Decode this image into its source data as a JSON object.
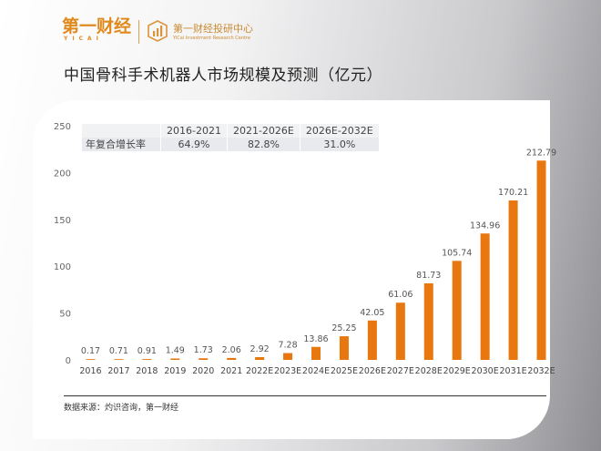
{
  "header": {
    "logo_text": "第一财经",
    "logo_sub": "YICAI",
    "center_name": "第一财经投研中心",
    "center_name_en": "YiCai Investment Research Centre"
  },
  "chart_data": {
    "type": "bar",
    "title": "中国骨科手术机器人市场规模及预测（亿元）",
    "categories": [
      "2016",
      "2017",
      "2018",
      "2019",
      "2020",
      "2021",
      "2022E",
      "2023E",
      "2024E",
      "2025E",
      "2026E",
      "2027E",
      "2028E",
      "2029E",
      "2030E",
      "2031E",
      "2032E"
    ],
    "values": [
      0.17,
      0.71,
      0.91,
      1.49,
      1.73,
      2.06,
      2.92,
      7.28,
      13.86,
      25.25,
      42.05,
      61.06,
      81.73,
      105.74,
      134.96,
      170.21,
      212.79
    ],
    "value_labels": [
      "0.17",
      "0.71",
      "0.91",
      "1.49",
      "1.73",
      "2.06",
      "2.92",
      "7.28",
      "13.86",
      "25.25",
      "42.05",
      "61.06",
      "81.73",
      "105.74",
      "134.96",
      "170.21",
      "212.79"
    ],
    "ylim": [
      0,
      250
    ],
    "yticks": [
      "0",
      "50",
      "100",
      "150",
      "200",
      "250"
    ],
    "bar_color": "#e8770f",
    "grid": false,
    "xlabel": "",
    "ylabel": ""
  },
  "growth_table": {
    "headers": [
      "",
      "2016-2021",
      "2021-2026E",
      "2026E-2032E"
    ],
    "row_label": "年复合增长率",
    "values": [
      "64.9%",
      "82.8%",
      "31.0%"
    ]
  },
  "source": "数据来源：灼识咨询，第一财经"
}
